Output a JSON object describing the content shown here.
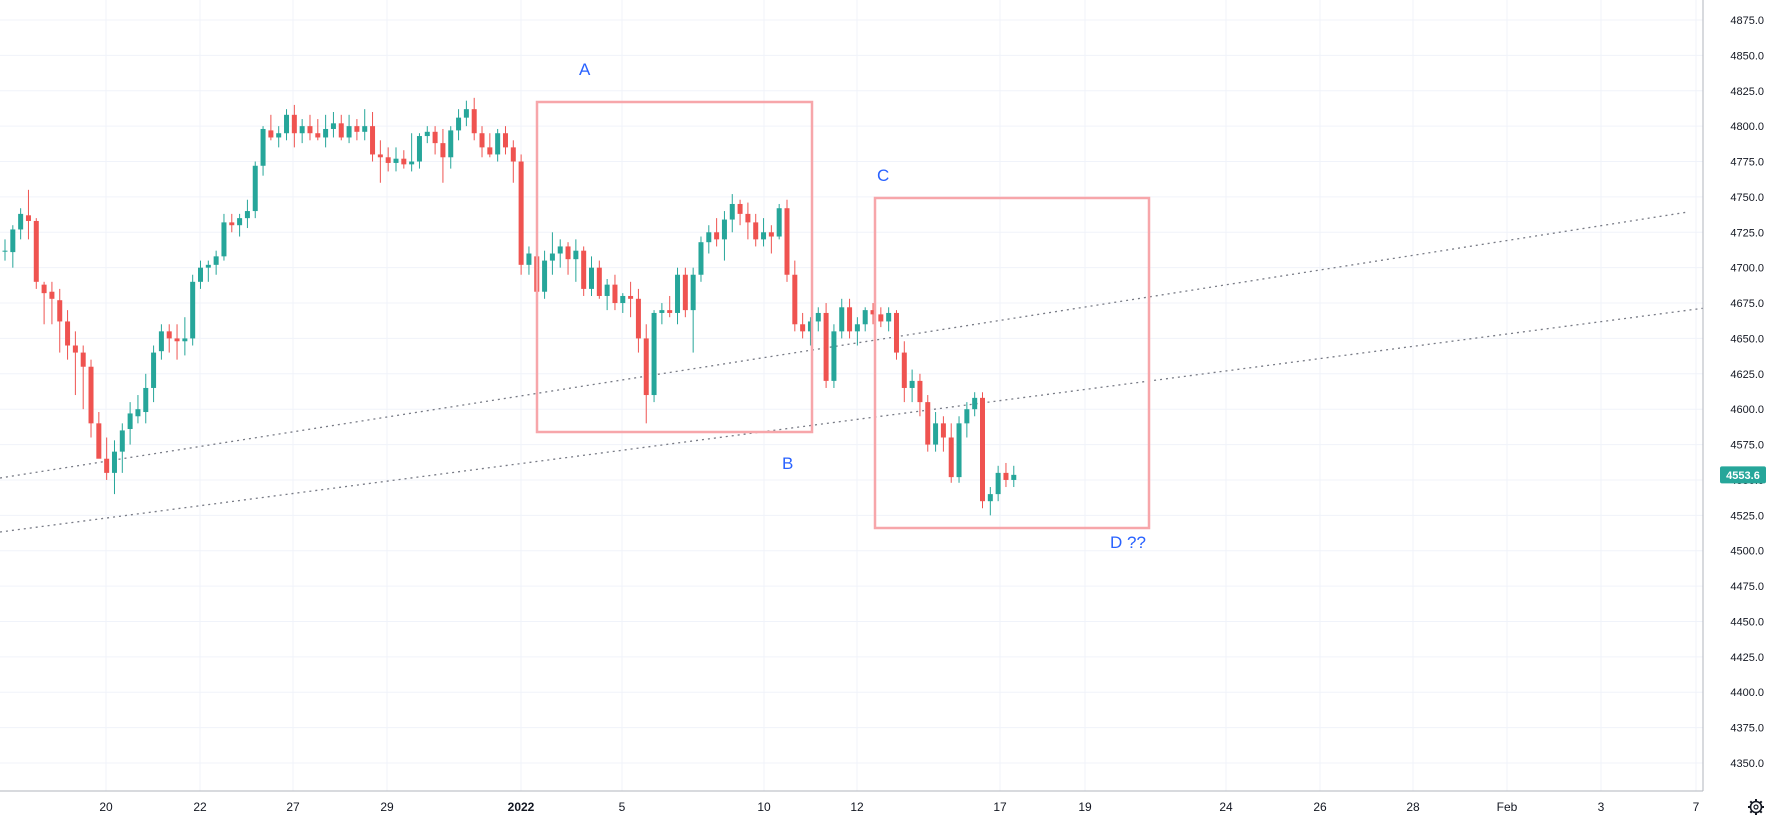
{
  "colors": {
    "up": "#26a69a",
    "down": "#ef5350",
    "grid": "#f0f3fa",
    "axis_border": "#b2b5be",
    "box": "#f7a6aa",
    "annotation": "#2962ff",
    "trendline": "#787b86",
    "last_price_bg": "#26a69a"
  },
  "price_axis": {
    "ticks": [
      "4875.0",
      "4850.0",
      "4825.0",
      "4800.0",
      "4775.0",
      "4750.0",
      "4725.0",
      "4700.0",
      "4675.0",
      "4650.0",
      "4625.0",
      "4600.0",
      "4575.0",
      "4550.0",
      "4525.0",
      "4500.0",
      "4475.0",
      "4450.0",
      "4425.0",
      "4400.0",
      "4375.0",
      "4350.0"
    ],
    "last_price": "4553.6"
  },
  "time_axis": {
    "labels": [
      {
        "text": "20",
        "bold": false
      },
      {
        "text": "22",
        "bold": false
      },
      {
        "text": "27",
        "bold": false
      },
      {
        "text": "29",
        "bold": false
      },
      {
        "text": "2022",
        "bold": true
      },
      {
        "text": "5",
        "bold": false
      },
      {
        "text": "10",
        "bold": false
      },
      {
        "text": "12",
        "bold": false
      },
      {
        "text": "17",
        "bold": false
      },
      {
        "text": "19",
        "bold": false
      },
      {
        "text": "24",
        "bold": false
      },
      {
        "text": "26",
        "bold": false
      },
      {
        "text": "28",
        "bold": false
      },
      {
        "text": "Feb",
        "bold": false
      },
      {
        "text": "3",
        "bold": false
      },
      {
        "text": "7",
        "bold": false
      }
    ]
  },
  "annotations": {
    "a": "A",
    "b": "B",
    "c": "C",
    "d": "D ??"
  },
  "settings_icon": "gear-icon",
  "chart_data": {
    "type": "candlestick",
    "ylim": [
      4340,
      4885
    ],
    "last_price": 4553.6,
    "candles": [
      [
        4712,
        4720,
        4705,
        4712
      ],
      [
        4711,
        4730,
        4700,
        4727
      ],
      [
        4727,
        4742,
        4720,
        4738
      ],
      [
        4737,
        4755,
        4720,
        4733
      ],
      [
        4733,
        4735,
        4685,
        4690
      ],
      [
        4688,
        4690,
        4660,
        4682
      ],
      [
        4683,
        4690,
        4660,
        4678
      ],
      [
        4677,
        4685,
        4640,
        4662
      ],
      [
        4662,
        4670,
        4635,
        4645
      ],
      [
        4645,
        4655,
        4610,
        4640
      ],
      [
        4640,
        4645,
        4600,
        4630
      ],
      [
        4630,
        4635,
        4580,
        4590
      ],
      [
        4590,
        4598,
        4570,
        4565
      ],
      [
        4565,
        4580,
        4550,
        4555
      ],
      [
        4555,
        4578,
        4540,
        4570
      ],
      [
        4570,
        4590,
        4555,
        4585
      ],
      [
        4586,
        4605,
        4575,
        4597
      ],
      [
        4595,
        4610,
        4590,
        4600
      ],
      [
        4598,
        4625,
        4590,
        4615
      ],
      [
        4615,
        4645,
        4605,
        4640
      ],
      [
        4641,
        4660,
        4635,
        4655
      ],
      [
        4655,
        4660,
        4640,
        4650
      ],
      [
        4650,
        4660,
        4635,
        4648
      ],
      [
        4648,
        4665,
        4638,
        4650
      ],
      [
        4650,
        4695,
        4645,
        4690
      ],
      [
        4690,
        4705,
        4685,
        4700
      ],
      [
        4700,
        4705,
        4690,
        4702
      ],
      [
        4702,
        4712,
        4695,
        4708
      ],
      [
        4708,
        4738,
        4705,
        4732
      ],
      [
        4732,
        4738,
        4725,
        4730
      ],
      [
        4730,
        4738,
        4722,
        4735
      ],
      [
        4735,
        4748,
        4728,
        4740
      ],
      [
        4740,
        4775,
        4735,
        4772
      ],
      [
        4772,
        4800,
        4765,
        4798
      ],
      [
        4797,
        4808,
        4790,
        4792
      ],
      [
        4792,
        4800,
        4785,
        4795
      ],
      [
        4795,
        4812,
        4790,
        4808
      ],
      [
        4808,
        4815,
        4785,
        4795
      ],
      [
        4795,
        4805,
        4788,
        4800
      ],
      [
        4800,
        4808,
        4790,
        4795
      ],
      [
        4795,
        4805,
        4790,
        4792
      ],
      [
        4792,
        4808,
        4785,
        4798
      ],
      [
        4798,
        4810,
        4792,
        4802
      ],
      [
        4802,
        4808,
        4790,
        4792
      ],
      [
        4792,
        4808,
        4788,
        4800
      ],
      [
        4800,
        4805,
        4790,
        4796
      ],
      [
        4796,
        4812,
        4790,
        4800
      ],
      [
        4800,
        4810,
        4775,
        4780
      ],
      [
        4780,
        4790,
        4760,
        4778
      ],
      [
        4778,
        4785,
        4768,
        4774
      ],
      [
        4774,
        4785,
        4768,
        4777
      ],
      [
        4777,
        4783,
        4770,
        4773
      ],
      [
        4773,
        4795,
        4768,
        4775
      ],
      [
        4775,
        4795,
        4770,
        4793
      ],
      [
        4793,
        4800,
        4788,
        4796
      ],
      [
        4796,
        4800,
        4780,
        4788
      ],
      [
        4788,
        4798,
        4760,
        4778
      ],
      [
        4778,
        4800,
        4770,
        4797
      ],
      [
        4797,
        4812,
        4790,
        4806
      ],
      [
        4806,
        4818,
        4800,
        4812
      ],
      [
        4812,
        4820,
        4790,
        4795
      ],
      [
        4795,
        4800,
        4778,
        4785
      ],
      [
        4785,
        4795,
        4778,
        4780
      ],
      [
        4780,
        4798,
        4775,
        4795
      ],
      [
        4795,
        4800,
        4780,
        4785
      ],
      [
        4785,
        4790,
        4760,
        4775
      ],
      [
        4775,
        4780,
        4695,
        4702
      ],
      [
        4702,
        4715,
        4695,
        4710
      ],
      [
        4708,
        4712,
        4680,
        4683
      ],
      [
        4683,
        4712,
        4678,
        4705
      ],
      [
        4705,
        4725,
        4695,
        4710
      ],
      [
        4710,
        4720,
        4700,
        4715
      ],
      [
        4715,
        4718,
        4695,
        4706
      ],
      [
        4706,
        4720,
        4690,
        4712
      ],
      [
        4712,
        4715,
        4680,
        4685
      ],
      [
        4685,
        4708,
        4680,
        4700
      ],
      [
        4700,
        4705,
        4678,
        4680
      ],
      [
        4680,
        4692,
        4670,
        4688
      ],
      [
        4688,
        4695,
        4670,
        4675
      ],
      [
        4675,
        4682,
        4668,
        4680
      ],
      [
        4680,
        4690,
        4665,
        4678
      ],
      [
        4678,
        4685,
        4640,
        4650
      ],
      [
        4650,
        4660,
        4590,
        4610
      ],
      [
        4610,
        4670,
        4605,
        4668
      ],
      [
        4668,
        4675,
        4660,
        4670
      ],
      [
        4670,
        4680,
        4665,
        4668
      ],
      [
        4668,
        4700,
        4660,
        4695
      ],
      [
        4695,
        4700,
        4665,
        4670
      ],
      [
        4670,
        4700,
        4640,
        4695
      ],
      [
        4695,
        4722,
        4690,
        4718
      ],
      [
        4718,
        4730,
        4710,
        4725
      ],
      [
        4725,
        4735,
        4715,
        4720
      ],
      [
        4720,
        4740,
        4705,
        4734
      ],
      [
        4734,
        4752,
        4725,
        4745
      ],
      [
        4745,
        4748,
        4730,
        4738
      ],
      [
        4738,
        4746,
        4720,
        4732
      ],
      [
        4732,
        4738,
        4715,
        4720
      ],
      [
        4720,
        4735,
        4715,
        4725
      ],
      [
        4725,
        4730,
        4710,
        4722
      ],
      [
        4722,
        4745,
        4720,
        4742
      ],
      [
        4742,
        4748,
        4690,
        4695
      ],
      [
        4695,
        4705,
        4655,
        4660
      ],
      [
        4660,
        4668,
        4650,
        4655
      ],
      [
        4655,
        4665,
        4645,
        4662
      ],
      [
        4662,
        4672,
        4655,
        4668
      ],
      [
        4668,
        4675,
        4615,
        4620
      ],
      [
        4620,
        4660,
        4615,
        4655
      ],
      [
        4655,
        4678,
        4650,
        4672
      ],
      [
        4672,
        4678,
        4650,
        4655
      ],
      [
        4655,
        4665,
        4645,
        4660
      ],
      [
        4660,
        4672,
        4655,
        4670
      ],
      [
        4670,
        4675,
        4660,
        4667
      ],
      [
        4667,
        4672,
        4658,
        4662
      ],
      [
        4662,
        4672,
        4655,
        4668
      ],
      [
        4668,
        4670,
        4635,
        4640
      ],
      [
        4640,
        4648,
        4605,
        4615
      ],
      [
        4615,
        4628,
        4605,
        4620
      ],
      [
        4620,
        4625,
        4595,
        4605
      ],
      [
        4605,
        4610,
        4570,
        4575
      ],
      [
        4575,
        4598,
        4570,
        4590
      ],
      [
        4590,
        4595,
        4570,
        4580
      ],
      [
        4580,
        4590,
        4548,
        4552
      ],
      [
        4552,
        4595,
        4548,
        4590
      ],
      [
        4590,
        4605,
        4580,
        4600
      ],
      [
        4600,
        4612,
        4595,
        4608
      ],
      [
        4608,
        4612,
        4530,
        4535
      ],
      [
        4535,
        4545,
        4525,
        4540
      ],
      [
        4540,
        4560,
        4535,
        4555
      ],
      [
        4555,
        4562,
        4545,
        4550
      ],
      [
        4550,
        4560,
        4545,
        4553.6
      ]
    ]
  }
}
